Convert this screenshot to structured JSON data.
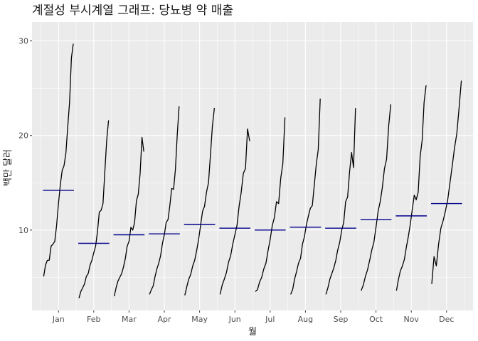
{
  "chart_data": {
    "type": "line",
    "title": "계절성 부시계열 그래프: 당뇨병 약 매출",
    "xlabel": "월",
    "ylabel": "백만 달러",
    "yticks": [
      10,
      20,
      30
    ],
    "ylim": [
      1.5,
      32
    ],
    "grid": true,
    "colors": {
      "panel": "#ebebeb",
      "grid": "#ffffff",
      "line": "#000000",
      "mean": "#00008b"
    },
    "months": [
      {
        "label": "Jan",
        "mean": 14.2,
        "values": [
          5.1,
          6.3,
          6.8,
          6.8,
          8.3,
          8.5,
          8.8,
          10.5,
          12.8,
          14.8,
          16.3,
          16.8,
          18.1,
          20.9,
          23.5,
          28.2,
          29.7
        ]
      },
      {
        "label": "Feb",
        "mean": 8.6,
        "values": [
          2.8,
          3.5,
          3.9,
          4.3,
          5.1,
          5.4,
          6.3,
          6.8,
          7.6,
          8.3,
          9.8,
          11.9,
          12.1,
          12.8,
          16.2,
          19.5,
          21.6
        ]
      },
      {
        "label": "Mar",
        "mean": 9.5,
        "values": [
          3.0,
          3.9,
          4.6,
          5.0,
          5.4,
          6.1,
          7.0,
          8.3,
          8.8,
          10.3,
          10.0,
          10.8,
          13.1,
          13.8,
          16.0,
          19.8,
          18.3
        ]
      },
      {
        "label": "Apr",
        "mean": 9.6,
        "values": [
          3.2,
          3.7,
          4.1,
          5.1,
          5.9,
          6.5,
          7.3,
          8.6,
          9.5,
          10.8,
          11.1,
          12.6,
          14.4,
          14.3,
          16.4,
          20.1,
          23.1
        ]
      },
      {
        "label": "May",
        "mean": 10.6,
        "values": [
          3.1,
          4.0,
          4.8,
          5.3,
          6.2,
          6.8,
          7.8,
          9.0,
          10.5,
          12.0,
          12.5,
          14.0,
          15.0,
          18.0,
          21.0,
          22.9
        ]
      },
      {
        "label": "Jun",
        "mean": 10.2,
        "values": [
          3.2,
          4.2,
          4.8,
          5.5,
          6.6,
          7.3,
          8.5,
          9.5,
          10.5,
          12.5,
          14.0,
          16.0,
          16.5,
          20.7,
          19.4
        ]
      },
      {
        "label": "Jul",
        "mean": 10.0,
        "values": [
          3.5,
          3.7,
          4.5,
          5.0,
          5.9,
          6.5,
          7.8,
          9.0,
          10.5,
          11.3,
          13.0,
          12.8,
          15.5,
          17.0,
          21.9
        ]
      },
      {
        "label": "Aug",
        "mean": 10.3,
        "values": [
          3.2,
          3.7,
          4.8,
          5.6,
          6.5,
          7.0,
          8.5,
          9.3,
          10.6,
          11.5,
          12.3,
          12.6,
          14.8,
          17.0,
          18.5,
          23.9
        ]
      },
      {
        "label": "Sep",
        "mean": 10.2,
        "values": [
          3.2,
          3.9,
          4.8,
          5.4,
          6.0,
          6.8,
          7.9,
          8.7,
          10.0,
          10.8,
          13.0,
          13.5,
          16.2,
          18.2,
          16.6,
          22.9
        ]
      },
      {
        "label": "Oct",
        "mean": 11.1,
        "values": [
          3.6,
          4.2,
          5.1,
          5.8,
          6.8,
          7.9,
          8.7,
          10.3,
          12.0,
          13.0,
          14.5,
          16.5,
          17.5,
          21.0,
          23.3
        ]
      },
      {
        "label": "Nov",
        "mean": 11.5,
        "values": [
          3.6,
          4.8,
          5.7,
          6.2,
          6.9,
          8.2,
          9.3,
          10.6,
          12.2,
          13.7,
          13.2,
          14.0,
          17.8,
          19.5,
          23.5,
          25.3
        ]
      },
      {
        "label": "Dec",
        "mean": 12.8,
        "values": [
          4.3,
          7.2,
          6.2,
          8.5,
          10.2,
          11.0,
          12.0,
          13.2,
          15.0,
          16.8,
          18.7,
          20.2,
          22.9,
          25.8
        ]
      }
    ]
  }
}
